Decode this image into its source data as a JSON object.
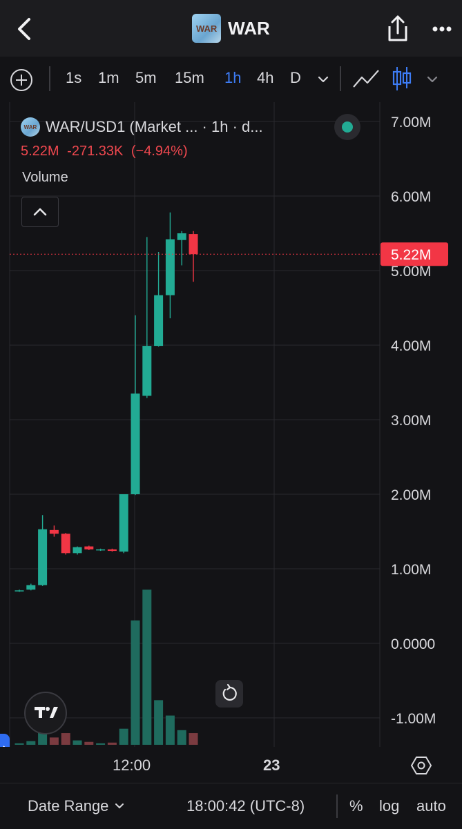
{
  "header": {
    "title": "WAR",
    "logo_text": "WAR",
    "back_icon": "chevron-left-icon",
    "share_icon": "share-icon",
    "more_icon": "more-dots-icon"
  },
  "toolbar": {
    "timeframes": [
      "1s",
      "1m",
      "5m",
      "15m",
      "1h",
      "4h",
      "D"
    ],
    "active_timeframe": "1h",
    "active_color": "#3d7cf5"
  },
  "legend": {
    "logo_text": "WAR",
    "symbol_text": "WAR/USD1 (Market ...  · 1h · d...",
    "last": "5.22M",
    "change": "-271.33K",
    "change_pct": "(−4.94%)",
    "volume_label": "Volume"
  },
  "colors": {
    "up": "#22ab94",
    "down": "#f23645",
    "up_volume": "#1f6b5e",
    "down_volume": "#7b3b40",
    "grid": "#2a2a2e",
    "price_tag": "#f23645"
  },
  "time_axis": {
    "labels": [
      "12:00",
      "23"
    ]
  },
  "bottom_bar": {
    "date_range": "Date Range",
    "clock": "18:00:42 (UTC-8)",
    "percent": "%",
    "log": "log",
    "auto": "auto"
  },
  "chart_data": {
    "type": "candlestick",
    "symbol": "WAR/USD1",
    "interval": "1h",
    "price_axis_labels": [
      "7.00M",
      "6.00M",
      "5.00M",
      "4.00M",
      "3.00M",
      "2.00M",
      "1.00M",
      "0.0000",
      "-1.00M"
    ],
    "ylim": [
      -1350000,
      7200000
    ],
    "current_price": 5220000,
    "current_price_label": "5.22M",
    "candles": [
      {
        "o": 0.7,
        "h": 0.72,
        "l": 0.69,
        "c": 0.71,
        "v": 0.02
      },
      {
        "o": 0.72,
        "h": 0.8,
        "l": 0.71,
        "c": 0.78,
        "v": 0.05
      },
      {
        "o": 0.78,
        "h": 1.72,
        "l": 0.77,
        "c": 1.53,
        "v": 0.18
      },
      {
        "o": 1.52,
        "h": 1.58,
        "l": 1.43,
        "c": 1.47,
        "v": 0.1
      },
      {
        "o": 1.47,
        "h": 1.48,
        "l": 1.19,
        "c": 1.21,
        "v": 0.16
      },
      {
        "o": 1.21,
        "h": 1.3,
        "l": 1.19,
        "c": 1.29,
        "v": 0.06
      },
      {
        "o": 1.3,
        "h": 1.31,
        "l": 1.25,
        "c": 1.26,
        "v": 0.04
      },
      {
        "o": 1.25,
        "h": 1.27,
        "l": 1.24,
        "c": 1.26,
        "v": 0.02
      },
      {
        "o": 1.26,
        "h": 1.27,
        "l": 1.23,
        "c": 1.24,
        "v": 0.03
      },
      {
        "o": 1.23,
        "h": 2.0,
        "l": 1.21,
        "c": 2.0,
        "v": 0.22
      },
      {
        "o": 2.0,
        "h": 4.4,
        "l": 1.99,
        "c": 3.35,
        "v": 1.7
      },
      {
        "o": 3.32,
        "h": 5.45,
        "l": 3.29,
        "c": 3.99,
        "v": 2.12
      },
      {
        "o": 3.99,
        "h": 5.25,
        "l": 3.98,
        "c": 4.67,
        "v": 0.61
      },
      {
        "o": 4.67,
        "h": 5.78,
        "l": 4.36,
        "c": 5.42,
        "v": 0.4
      },
      {
        "o": 5.41,
        "h": 5.53,
        "l": 5.07,
        "c": 5.5,
        "v": 0.2
      },
      {
        "o": 5.49,
        "h": 5.53,
        "l": 4.85,
        "c": 5.22,
        "v": 0.16
      }
    ]
  }
}
